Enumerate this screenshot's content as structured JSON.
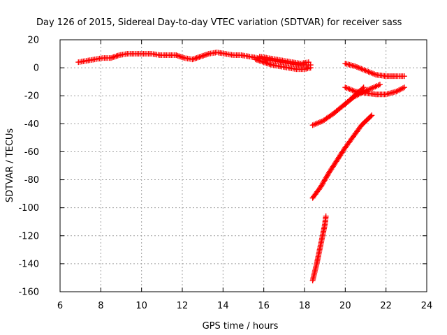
{
  "chart_data": {
    "type": "scatter",
    "title": "Day 126 of 2015, Sidereal Day-to-day VTEC variation (SDTVAR) for receiver sass",
    "xlabel": "GPS time / hours",
    "ylabel": "SDTVAR / TECUs",
    "xlim": [
      6,
      24
    ],
    "ylim": [
      -160,
      20
    ],
    "xticks": [
      "6",
      "8",
      "10",
      "12",
      "14",
      "16",
      "18",
      "20",
      "22",
      "24"
    ],
    "yticks": [
      "20",
      "0",
      "-20",
      "-40",
      "-60",
      "-80",
      "-100",
      "-120",
      "-140",
      "-160"
    ],
    "grid": true,
    "legend": "none",
    "marker": "plus",
    "color": "#ff0000",
    "series": [
      {
        "x": [
          6.9,
          7.3,
          7.7,
          8.1,
          8.5,
          8.9,
          9.3,
          9.7,
          10.1,
          10.5,
          10.9,
          11.3,
          11.7,
          12.1,
          12.5,
          12.9,
          13.3,
          13.7,
          14.1,
          14.5,
          14.9,
          15.3,
          15.7,
          16.1,
          16.5,
          16.9,
          17.3,
          17.7,
          18.1,
          18.3
        ],
        "y": [
          4,
          5,
          6,
          7,
          7,
          9,
          10,
          10,
          10,
          10,
          9,
          9,
          9,
          7,
          6,
          8,
          10,
          11,
          10,
          9,
          9,
          8,
          7,
          6,
          5,
          4,
          3,
          2,
          2,
          2
        ]
      },
      {
        "x": [
          15.8,
          16.2,
          16.6,
          17.0,
          17.4,
          17.8,
          18.2
        ],
        "y": [
          8,
          7,
          6,
          5,
          4,
          3,
          4
        ]
      },
      {
        "x": [
          15.6,
          16.0,
          16.4,
          16.8,
          17.2,
          17.6,
          18.0,
          18.3
        ],
        "y": [
          6,
          4,
          2,
          1,
          0,
          -1,
          -1,
          0
        ]
      },
      {
        "x": [
          20.0,
          20.5,
          21.0,
          21.5,
          22.0,
          22.5,
          22.9
        ],
        "y": [
          3,
          1,
          -2,
          -5,
          -6,
          -6,
          -6
        ]
      },
      {
        "x": [
          20.0,
          20.5,
          21.0,
          21.5,
          22.0,
          22.5,
          22.9
        ],
        "y": [
          -14,
          -17,
          -18,
          -19,
          -19,
          -17,
          -14
        ]
      },
      {
        "x": [
          18.4,
          18.9,
          19.4,
          19.9,
          20.4,
          20.9,
          21.4,
          21.7
        ],
        "y": [
          -41,
          -38,
          -33,
          -27,
          -21,
          -17,
          -14,
          -12
        ]
      },
      {
        "x": [
          20.0,
          20.3,
          20.6,
          20.9
        ],
        "y": [
          -26,
          -22,
          -18,
          -14
        ]
      },
      {
        "x": [
          18.4,
          18.8,
          19.2,
          19.6,
          20.0,
          20.4,
          20.8,
          21.3
        ],
        "y": [
          -93,
          -85,
          -75,
          -66,
          -57,
          -49,
          -41,
          -34
        ]
      },
      {
        "x": [
          18.4,
          18.5,
          18.6,
          18.7,
          18.8,
          18.9,
          19.0,
          19.05
        ],
        "y": [
          -152,
          -146,
          -140,
          -133,
          -126,
          -119,
          -112,
          -106
        ]
      }
    ]
  }
}
